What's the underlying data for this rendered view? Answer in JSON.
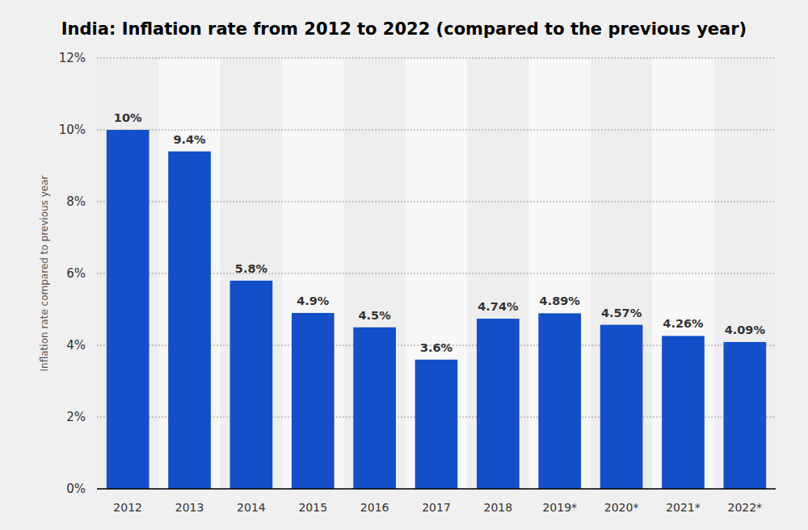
{
  "chart_data": {
    "type": "bar",
    "title": "India: Inflation rate from 2012 to 2022 (compared to the previous year)",
    "y_label": "Inflation rate compared to previous year",
    "categories": [
      "2012",
      "2013",
      "2014",
      "2015",
      "2016",
      "2017",
      "2018",
      "2019*",
      "2020*",
      "2021*",
      "2022*"
    ],
    "values": [
      10,
      9.4,
      5.8,
      4.9,
      4.5,
      3.6,
      4.74,
      4.89,
      4.57,
      4.26,
      4.09
    ],
    "value_labels": [
      "10%",
      "9.4%",
      "5.8%",
      "4.9%",
      "4.5%",
      "3.6%",
      "4.74%",
      "4.89%",
      "4.57%",
      "4.26%",
      "4.09%"
    ],
    "color": "#134fc9",
    "ylim": [
      0,
      12
    ],
    "yticks": [
      {
        "value": 0,
        "label": "0%"
      },
      {
        "value": 2,
        "label": "2%"
      },
      {
        "value": 4,
        "label": "4%"
      },
      {
        "value": 6,
        "label": "6%"
      },
      {
        "value": 8,
        "label": "8%"
      },
      {
        "value": 10,
        "label": "10%"
      },
      {
        "value": 12,
        "label": "12%"
      }
    ],
    "grid": true,
    "data_labels": true
  }
}
